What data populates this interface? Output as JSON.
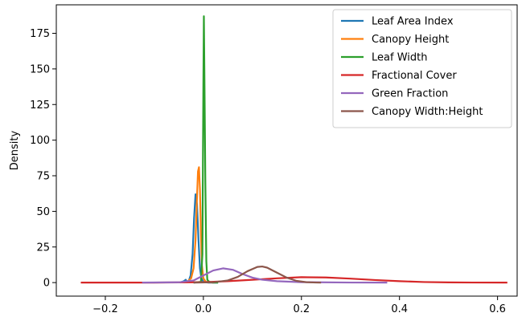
{
  "chart_data": {
    "type": "line",
    "title": "",
    "xlabel": "",
    "ylabel": "Density",
    "xlim": [
      -0.3,
      0.64
    ],
    "ylim": [
      -9.5,
      195
    ],
    "xticks": [
      -0.2,
      0.0,
      0.2,
      0.4,
      0.6
    ],
    "xtick_labels": [
      "−0.2",
      "0.0",
      "0.2",
      "0.4",
      "0.6"
    ],
    "yticks": [
      0,
      25,
      50,
      75,
      100,
      125,
      150,
      175
    ],
    "ytick_labels": [
      "0",
      "25",
      "50",
      "75",
      "100",
      "125",
      "150",
      "175"
    ],
    "grid": false,
    "legend_position": "top-right",
    "series": [
      {
        "name": "Leaf Area Index",
        "color": "#1f77b4",
        "x": [
          -0.048,
          -0.04,
          -0.036,
          -0.033,
          -0.03,
          -0.026,
          -0.022,
          -0.019,
          -0.016,
          -0.013,
          -0.01,
          -0.007,
          -0.004,
          0.0,
          0.01,
          0.03
        ],
        "y": [
          0,
          1,
          2,
          0.5,
          1,
          5,
          20,
          45,
          62,
          55,
          30,
          10,
          3,
          0.5,
          0,
          0
        ]
      },
      {
        "name": "Canopy Height",
        "color": "#ff7f0e",
        "x": [
          -0.035,
          -0.025,
          -0.02,
          -0.016,
          -0.013,
          -0.011,
          -0.009,
          -0.007,
          -0.005,
          -0.003,
          0.0,
          0.005,
          0.02
        ],
        "y": [
          0,
          3,
          10,
          30,
          60,
          78,
          81,
          65,
          35,
          12,
          3,
          0.5,
          0
        ]
      },
      {
        "name": "Leaf Width",
        "color": "#2ca02c",
        "x": [
          -0.02,
          -0.005,
          -0.002,
          -0.001,
          0.0,
          0.001,
          0.002,
          0.004,
          0.006,
          0.008,
          0.012,
          0.02,
          0.03
        ],
        "y": [
          0,
          0.5,
          20,
          80,
          140,
          187,
          150,
          70,
          15,
          2,
          0.5,
          0,
          0
        ]
      },
      {
        "name": "Fractional Cover",
        "color": "#d62728",
        "x": [
          -0.25,
          -0.1,
          0.0,
          0.05,
          0.1,
          0.15,
          0.2,
          0.25,
          0.3,
          0.35,
          0.4,
          0.45,
          0.5,
          0.55,
          0.62
        ],
        "y": [
          0,
          0,
          0.3,
          1,
          2,
          3,
          3.8,
          3.6,
          2.8,
          1.8,
          1.0,
          0.4,
          0.15,
          0.05,
          0
        ]
      },
      {
        "name": "Green Fraction",
        "color": "#9467bd",
        "x": [
          -0.125,
          -0.05,
          -0.02,
          0.0,
          0.02,
          0.04,
          0.06,
          0.08,
          0.1,
          0.12,
          0.15,
          0.2,
          0.3,
          0.375
        ],
        "y": [
          0,
          0.2,
          1.5,
          5,
          8.5,
          10,
          9,
          6,
          3.5,
          2,
          1,
          0.3,
          0.05,
          0
        ]
      },
      {
        "name": "Canopy Width:Height",
        "color": "#8c564b",
        "x": [
          -0.02,
          0.02,
          0.05,
          0.07,
          0.09,
          0.11,
          0.12,
          0.13,
          0.15,
          0.17,
          0.19,
          0.21,
          0.23,
          0.24
        ],
        "y": [
          0,
          0.2,
          1.5,
          4,
          8,
          11,
          11.3,
          10.5,
          7,
          3.5,
          1.2,
          0.3,
          0.05,
          0
        ]
      }
    ]
  }
}
